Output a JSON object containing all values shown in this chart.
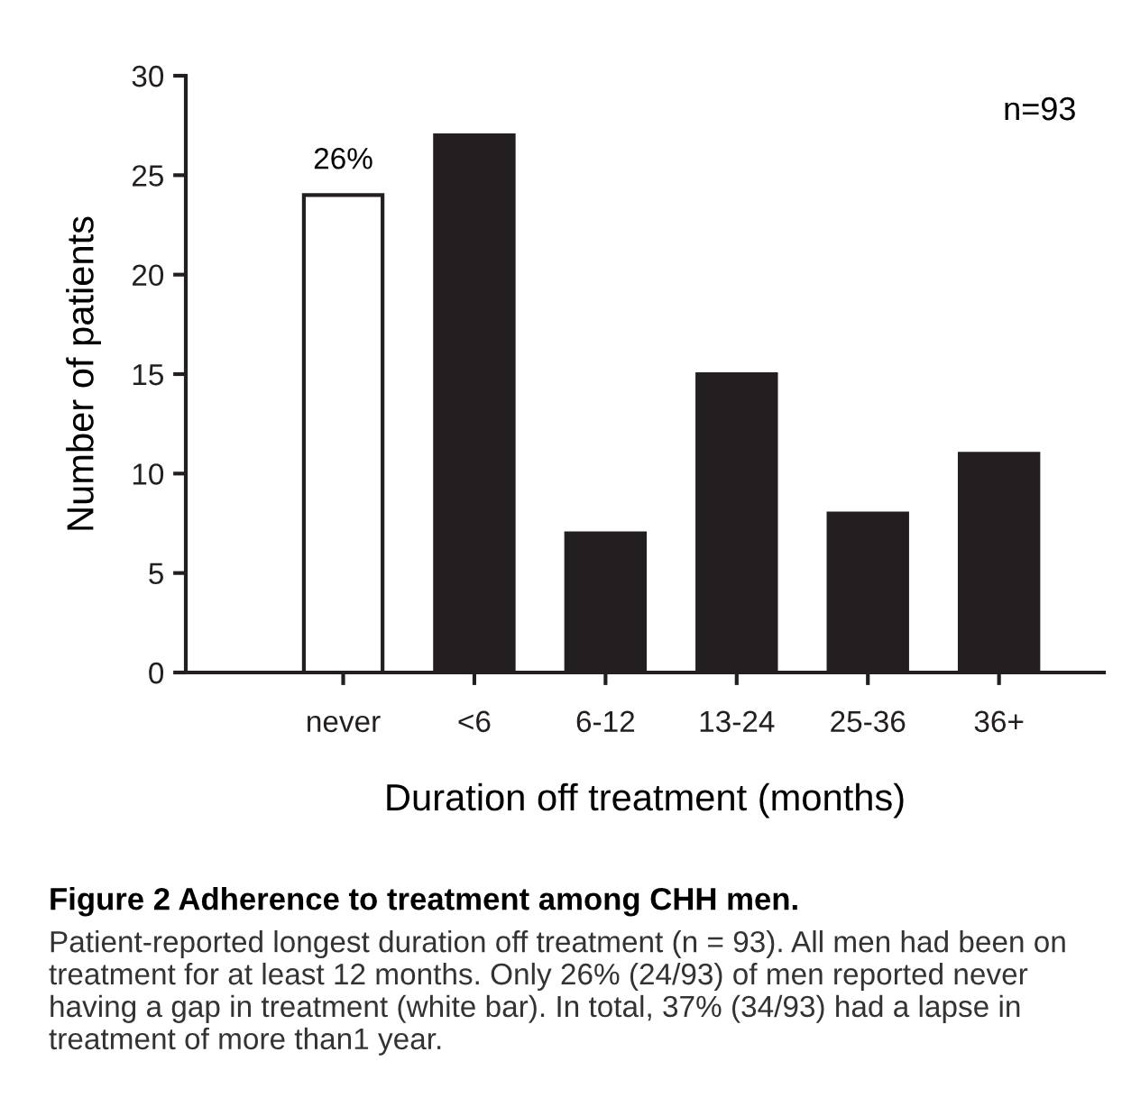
{
  "chart_data": {
    "type": "bar",
    "title": "Figure 2 Adherence to treatment among CHH men.",
    "xlabel": "Duration off treatment (months)",
    "ylabel": "Number of patients",
    "categories": [
      "never",
      "<6",
      "6-12",
      "13-24",
      "25-36",
      "36+"
    ],
    "values": [
      24,
      27,
      7,
      15,
      8,
      11
    ],
    "colors": [
      "#ffffff",
      "#231f20",
      "#231f20",
      "#231f20",
      "#231f20",
      "#231f20"
    ],
    "ylim": [
      0,
      30
    ],
    "yticks": [
      0,
      5,
      10,
      15,
      20,
      25,
      30
    ],
    "grid": false,
    "legend": false,
    "annotations": [
      "n=93",
      {
        "text": "26%",
        "x": "never",
        "y": 24
      },
      "Patient-reported longest duration off treatment (n = 93). All men had been on treatment for at least 12 months. Only 26% (24/93) of men reported never having a gap in treatment (white bar). In total, 37% (34/93) had a lapse in treatment of more than1 year."
    ]
  }
}
